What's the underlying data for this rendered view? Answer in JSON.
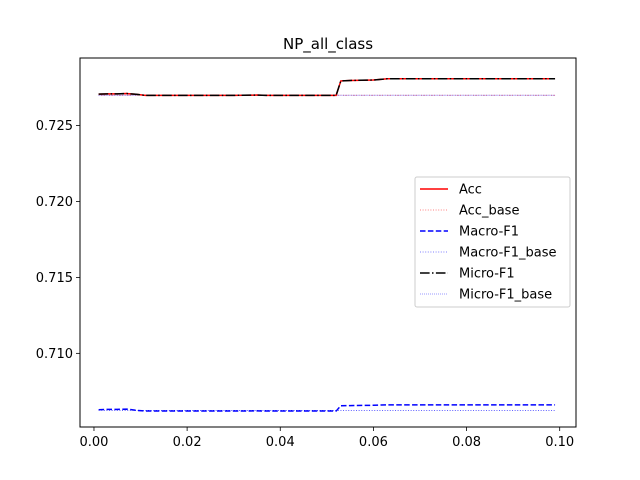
{
  "chart_data": {
    "type": "line",
    "title": "NP_all_class",
    "xlabel": "",
    "ylabel": "",
    "xlim": [
      -0.003,
      0.1035
    ],
    "ylim": [
      0.70515,
      0.72945
    ],
    "xticks": [
      0.0,
      0.02,
      0.04,
      0.06,
      0.08,
      0.1
    ],
    "xtick_labels": [
      "0.00",
      "0.02",
      "0.04",
      "0.06",
      "0.08",
      "0.10"
    ],
    "yticks": [
      0.71,
      0.715,
      0.72,
      0.725
    ],
    "ytick_labels": [
      "0.710",
      "0.715",
      "0.720",
      "0.725"
    ],
    "legend_position": "center-right",
    "x": [
      0.001,
      0.003,
      0.005,
      0.007,
      0.009,
      0.011,
      0.013,
      0.015,
      0.02,
      0.025,
      0.03,
      0.035,
      0.037,
      0.04,
      0.045,
      0.05,
      0.052,
      0.053,
      0.055,
      0.06,
      0.063,
      0.065,
      0.07,
      0.075,
      0.08,
      0.085,
      0.09,
      0.095,
      0.099
    ],
    "series": [
      {
        "name": "Acc",
        "color": "#ff0000",
        "style": "solid",
        "values": [
          0.72707,
          0.72709,
          0.72709,
          0.72711,
          0.72706,
          0.72699,
          0.72699,
          0.72699,
          0.72699,
          0.72699,
          0.72699,
          0.72701,
          0.72699,
          0.72699,
          0.72699,
          0.72699,
          0.72699,
          0.72794,
          0.72797,
          0.728,
          0.72808,
          0.72808,
          0.72808,
          0.72808,
          0.72808,
          0.72808,
          0.72808,
          0.72808,
          0.72808
        ]
      },
      {
        "name": "Acc_base",
        "color": "#ff0000",
        "style": "dotted",
        "values": [
          0.727,
          0.727,
          0.727,
          0.727,
          0.727,
          0.727,
          0.727,
          0.727,
          0.727,
          0.727,
          0.727,
          0.727,
          0.727,
          0.727,
          0.727,
          0.727,
          0.727,
          0.727,
          0.727,
          0.727,
          0.727,
          0.727,
          0.727,
          0.727,
          0.727,
          0.727,
          0.727,
          0.727,
          0.727
        ]
      },
      {
        "name": "Macro-F1",
        "color": "#0000ff",
        "style": "dashed",
        "values": [
          0.70629,
          0.70631,
          0.70631,
          0.70633,
          0.70625,
          0.7062,
          0.7062,
          0.7062,
          0.7062,
          0.7062,
          0.7062,
          0.70621,
          0.7062,
          0.7062,
          0.7062,
          0.7062,
          0.7062,
          0.70655,
          0.70656,
          0.70658,
          0.70661,
          0.70661,
          0.70661,
          0.70661,
          0.70661,
          0.70661,
          0.70661,
          0.70661,
          0.70661
        ]
      },
      {
        "name": "Macro-F1_base",
        "color": "#0000ff",
        "style": "dotted",
        "values": [
          0.70625,
          0.70625,
          0.70625,
          0.70625,
          0.70625,
          0.70625,
          0.70625,
          0.70625,
          0.70625,
          0.70625,
          0.70625,
          0.70625,
          0.70625,
          0.70625,
          0.70625,
          0.70625,
          0.70625,
          0.70625,
          0.70625,
          0.70625,
          0.70625,
          0.70625,
          0.70625,
          0.70625,
          0.70625,
          0.70625,
          0.70625,
          0.70625,
          0.70625
        ]
      },
      {
        "name": "Micro-F1",
        "color": "#000000",
        "style": "dashdot",
        "values": [
          0.72707,
          0.72709,
          0.72709,
          0.72711,
          0.72706,
          0.72699,
          0.72699,
          0.72699,
          0.72699,
          0.72699,
          0.72699,
          0.72701,
          0.72699,
          0.72699,
          0.72699,
          0.72699,
          0.72699,
          0.72794,
          0.72797,
          0.728,
          0.72808,
          0.72808,
          0.72808,
          0.72808,
          0.72808,
          0.72808,
          0.72808,
          0.72808,
          0.72808
        ]
      },
      {
        "name": "Micro-F1_base",
        "color": "#0000ff",
        "style": "dotted-fine",
        "values": [
          0.727,
          0.727,
          0.727,
          0.727,
          0.727,
          0.727,
          0.727,
          0.727,
          0.727,
          0.727,
          0.727,
          0.727,
          0.727,
          0.727,
          0.727,
          0.727,
          0.727,
          0.727,
          0.727,
          0.727,
          0.727,
          0.727,
          0.727,
          0.727,
          0.727,
          0.727,
          0.727,
          0.727,
          0.727
        ]
      }
    ]
  }
}
